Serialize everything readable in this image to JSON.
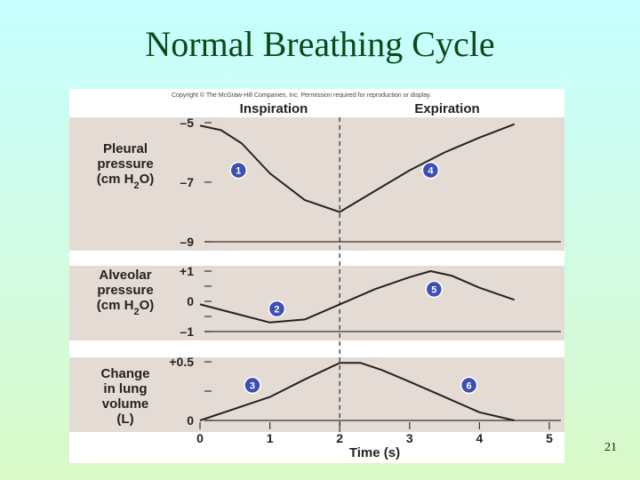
{
  "slide": {
    "title": "Normal Breathing Cycle",
    "page_number": "21"
  },
  "figure": {
    "copyright": "Copyright © The McGraw-Hill Companies, Inc. Permission required for reproduction or display.",
    "headers": {
      "inspiration": "Inspiration",
      "expiration": "Expiration"
    }
  },
  "chart_data": {
    "type": "line",
    "xlabel": "Time (s)",
    "xlim": [
      0,
      5
    ],
    "x_ticks": [
      "0",
      "1",
      "2",
      "3",
      "4",
      "5"
    ],
    "divider_x": 2,
    "panels": [
      {
        "id": "pleural",
        "ylabel_lines": [
          "Pleural",
          "pressure",
          "(cm H2O)"
        ],
        "ylim": [
          -9,
          -5
        ],
        "y_ticks": [
          {
            "v": -5,
            "label": "–5"
          },
          {
            "v": -7,
            "label": "–7"
          },
          {
            "v": -9,
            "label": "–9"
          }
        ],
        "minor_ticks": [],
        "points": [
          [
            0,
            -5.1
          ],
          [
            0.3,
            -5.25
          ],
          [
            0.6,
            -5.7
          ],
          [
            1,
            -6.7
          ],
          [
            1.5,
            -7.6
          ],
          [
            2,
            -8
          ],
          [
            2.5,
            -7.3
          ],
          [
            3,
            -6.6
          ],
          [
            3.5,
            -6
          ],
          [
            4,
            -5.5
          ],
          [
            4.5,
            -5.05
          ]
        ],
        "markers": [
          {
            "label": "1",
            "x": 0.55,
            "y": -6.6
          },
          {
            "label": "4",
            "x": 3.3,
            "y": -6.6
          }
        ]
      },
      {
        "id": "alveolar",
        "ylabel_lines": [
          "Alveolar",
          "pressure",
          "(cm H2O)"
        ],
        "ylim": [
          -1,
          1
        ],
        "y_ticks": [
          {
            "v": 1,
            "label": "+1"
          },
          {
            "v": 0,
            "label": "0"
          },
          {
            "v": -1,
            "label": "–1"
          }
        ],
        "minor_ticks": [
          0.5,
          -0.5
        ],
        "points": [
          [
            0,
            -0.1
          ],
          [
            0.5,
            -0.4
          ],
          [
            1,
            -0.7
          ],
          [
            1.5,
            -0.6
          ],
          [
            2,
            -0.1
          ],
          [
            2.5,
            0.4
          ],
          [
            3,
            0.8
          ],
          [
            3.3,
            1
          ],
          [
            3.6,
            0.85
          ],
          [
            4,
            0.45
          ],
          [
            4.5,
            0.05
          ]
        ],
        "markers": [
          {
            "label": "2",
            "x": 1.1,
            "y": -0.25
          },
          {
            "label": "5",
            "x": 3.35,
            "y": 0.4
          }
        ]
      },
      {
        "id": "volume",
        "ylabel_lines": [
          "Change",
          "in lung",
          "volume",
          "(L)"
        ],
        "ylim": [
          0,
          0.5
        ],
        "y_ticks": [
          {
            "v": 0.5,
            "label": "+0.5"
          },
          {
            "v": 0,
            "label": "0"
          }
        ],
        "minor_ticks": [
          0.25
        ],
        "points": [
          [
            0,
            0
          ],
          [
            0.5,
            0.1
          ],
          [
            1,
            0.2
          ],
          [
            1.5,
            0.35
          ],
          [
            2,
            0.49
          ],
          [
            2.3,
            0.49
          ],
          [
            2.6,
            0.43
          ],
          [
            3,
            0.33
          ],
          [
            3.5,
            0.2
          ],
          [
            4,
            0.07
          ],
          [
            4.5,
            0
          ]
        ],
        "markers": [
          {
            "label": "3",
            "x": 0.75,
            "y": 0.3
          },
          {
            "label": "6",
            "x": 3.85,
            "y": 0.3
          }
        ]
      }
    ]
  }
}
